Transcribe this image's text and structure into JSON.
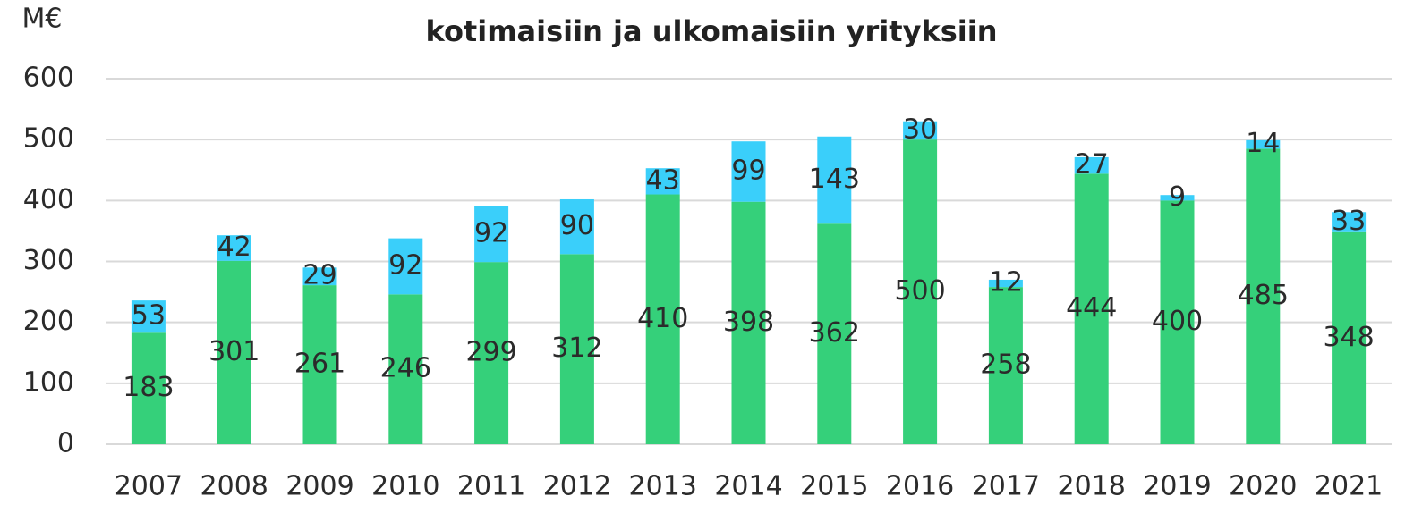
{
  "chart_data": {
    "type": "stacked_bar",
    "title": "kotimaisiin ja ulkomaisiin yrityksiin",
    "y_label": "M€",
    "categories": [
      "2007",
      "2008",
      "2009",
      "2010",
      "2011",
      "2012",
      "2013",
      "2014",
      "2015",
      "2016",
      "2017",
      "2018",
      "2019",
      "2020",
      "2021"
    ],
    "series": [
      {
        "color": "#35d07a",
        "values": [
          183,
          301,
          261,
          246,
          299,
          312,
          410,
          398,
          362,
          500,
          258,
          444,
          400,
          485,
          348
        ]
      },
      {
        "color": "#3acffa",
        "values": [
          53,
          42,
          29,
          92,
          92,
          90,
          43,
          99,
          143,
          30,
          12,
          27,
          9,
          14,
          33
        ]
      }
    ],
    "ylim": [
      0,
      600
    ],
    "yticks": [
      0,
      100,
      200,
      300,
      400,
      500,
      600
    ],
    "grid": true
  }
}
